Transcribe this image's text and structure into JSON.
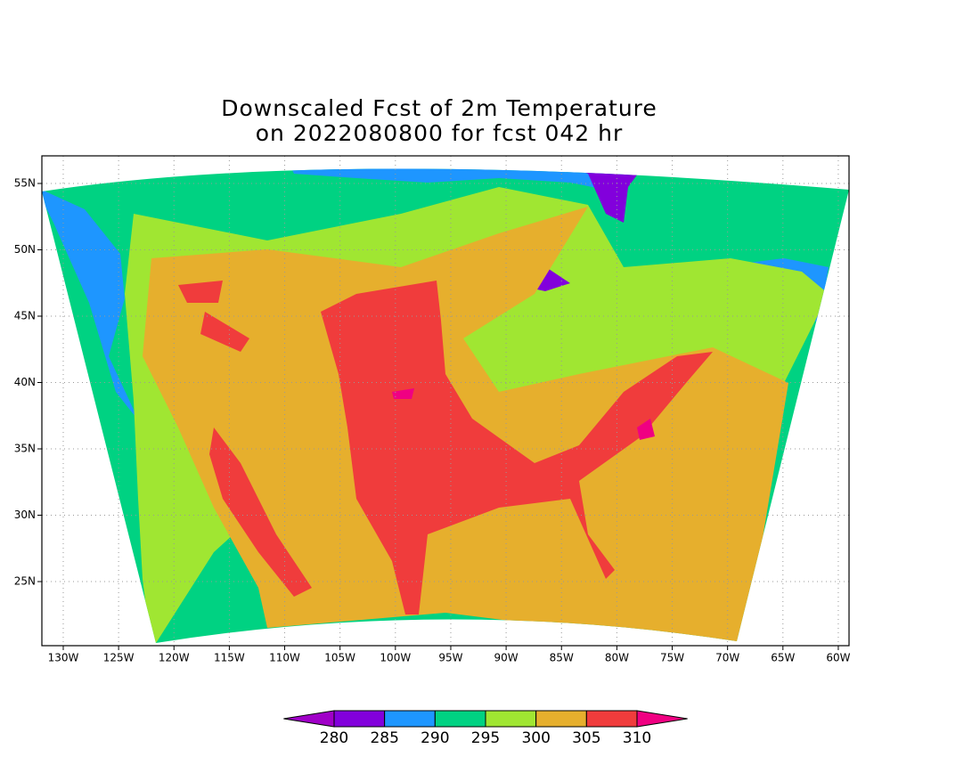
{
  "chart_data": {
    "type": "map",
    "title": [
      "Downscaled Fcst of 2m Temperature",
      "on 2022080800 for fcst 042 hr"
    ],
    "xlim": [
      -131.93,
      -59.03
    ],
    "ylim": [
      20.17,
      57.08
    ],
    "xticks": [
      {
        "value": -130,
        "label": "130W"
      },
      {
        "value": -125,
        "label": "125W"
      },
      {
        "value": -120,
        "label": "120W"
      },
      {
        "value": -115,
        "label": "115W"
      },
      {
        "value": -110,
        "label": "110W"
      },
      {
        "value": -105,
        "label": "105W"
      },
      {
        "value": -100,
        "label": "100W"
      },
      {
        "value": -95,
        "label": "95W"
      },
      {
        "value": -90,
        "label": "90W"
      },
      {
        "value": -85,
        "label": "85W"
      },
      {
        "value": -80,
        "label": "80W"
      },
      {
        "value": -75,
        "label": "75W"
      },
      {
        "value": -70,
        "label": "70W"
      },
      {
        "value": -65,
        "label": "65W"
      },
      {
        "value": -60,
        "label": "60W"
      }
    ],
    "yticks": [
      {
        "value": 25,
        "label": "25N"
      },
      {
        "value": 30,
        "label": "30N"
      },
      {
        "value": 35,
        "label": "35N"
      },
      {
        "value": 40,
        "label": "40N"
      },
      {
        "value": 45,
        "label": "45N"
      },
      {
        "value": 50,
        "label": "50N"
      },
      {
        "value": 55,
        "label": "55N"
      }
    ],
    "grid": true,
    "colorbar": {
      "levels": [
        280,
        285,
        290,
        295,
        300,
        305,
        310
      ],
      "colors": [
        "#a000c8",
        "#8200dc",
        "#1e96ff",
        "#00d282",
        "#a0e632",
        "#e6af2d",
        "#f03c3c",
        "#f00082"
      ]
    }
  }
}
